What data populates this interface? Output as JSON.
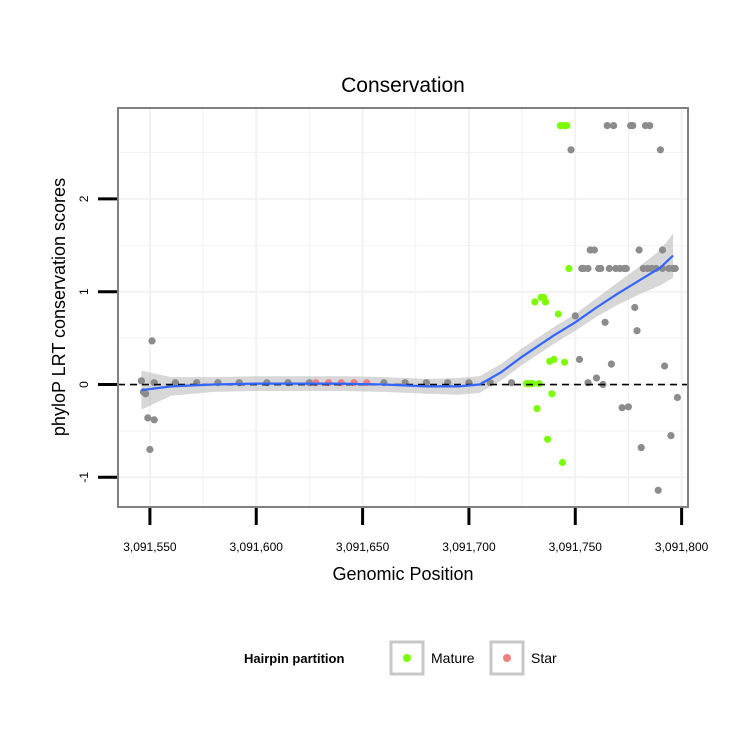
{
  "chart_data": {
    "type": "scatter",
    "title": "Conservation",
    "xlabel": "Genomic Position",
    "ylabel": "phyloP LRT conservation scores",
    "xlim": [
      3091535,
      3091803
    ],
    "ylim": [
      -1.32,
      2.98
    ],
    "x_ticks": [
      {
        "value": 3091550,
        "label": "3,091,550"
      },
      {
        "value": 3091600,
        "label": "3,091,600"
      },
      {
        "value": 3091650,
        "label": "3,091,650"
      },
      {
        "value": 3091700,
        "label": "3,091,700"
      },
      {
        "value": 3091750,
        "label": "3,091,750"
      },
      {
        "value": 3091800,
        "label": "3,091,800"
      }
    ],
    "y_ticks": [
      {
        "value": -1,
        "label": "-1"
      },
      {
        "value": 0,
        "label": "0"
      },
      {
        "value": 1,
        "label": "1"
      },
      {
        "value": 2,
        "label": "2"
      }
    ],
    "reference_line": {
      "y": 0,
      "style": "dashed"
    },
    "legend": {
      "title": "Hairpin partition",
      "position": "bottom",
      "entries": [
        {
          "label": "Mature",
          "color": "#7cfc00"
        },
        {
          "label": "Star",
          "color": "#f08080"
        }
      ]
    },
    "colors": {
      "Other": "#8c8c8c",
      "Mature": "#7cfc00",
      "Star": "#f08080",
      "smooth": "#3366ff",
      "band": "#bebebe",
      "panel_border": "#808080",
      "grid": "#f2f2f2"
    },
    "series": [
      {
        "name": "Other",
        "points": [
          [
            3091546,
            0.04
          ],
          [
            3091547,
            -0.08
          ],
          [
            3091548,
            -0.1
          ],
          [
            3091549,
            -0.36
          ],
          [
            3091550,
            -0.7
          ],
          [
            3091551,
            0.47
          ],
          [
            3091552,
            -0.38
          ],
          [
            3091552,
            0.02
          ],
          [
            3091562,
            0.02
          ],
          [
            3091572,
            0.02
          ],
          [
            3091582,
            0.02
          ],
          [
            3091592,
            0.02
          ],
          [
            3091605,
            0.02
          ],
          [
            3091615,
            0.02
          ],
          [
            3091625,
            0.02
          ],
          [
            3091660,
            0.02
          ],
          [
            3091670,
            0.02
          ],
          [
            3091680,
            0.02
          ],
          [
            3091690,
            0.02
          ],
          [
            3091700,
            0.02
          ],
          [
            3091710,
            0.02
          ],
          [
            3091720,
            0.02
          ],
          [
            3091748,
            2.53
          ],
          [
            3091750,
            0.74
          ],
          [
            3091752,
            0.27
          ],
          [
            3091753,
            1.25
          ],
          [
            3091754,
            1.25
          ],
          [
            3091756,
            1.25
          ],
          [
            3091756,
            0.02
          ],
          [
            3091757,
            1.45
          ],
          [
            3091759,
            1.45
          ],
          [
            3091760,
            0.07
          ],
          [
            3091761,
            1.25
          ],
          [
            3091762,
            1.25
          ],
          [
            3091763,
            0.0
          ],
          [
            3091764,
            0.67
          ],
          [
            3091765,
            2.79
          ],
          [
            3091766,
            1.25
          ],
          [
            3091767,
            0.22
          ],
          [
            3091768,
            2.79
          ],
          [
            3091769,
            1.25
          ],
          [
            3091771,
            1.25
          ],
          [
            3091772,
            -0.25
          ],
          [
            3091773,
            1.25
          ],
          [
            3091774,
            1.25
          ],
          [
            3091775,
            -0.24
          ],
          [
            3091776,
            2.79
          ],
          [
            3091777,
            2.79
          ],
          [
            3091778,
            0.83
          ],
          [
            3091779,
            0.58
          ],
          [
            3091780,
            1.45
          ],
          [
            3091781,
            -0.68
          ],
          [
            3091782,
            1.25
          ],
          [
            3091783,
            2.79
          ],
          [
            3091784,
            1.25
          ],
          [
            3091785,
            2.79
          ],
          [
            3091786,
            1.25
          ],
          [
            3091788,
            1.25
          ],
          [
            3091789,
            -1.14
          ],
          [
            3091790,
            2.53
          ],
          [
            3091791,
            1.45
          ],
          [
            3091791,
            1.25
          ],
          [
            3091792,
            0.2
          ],
          [
            3091794,
            1.25
          ],
          [
            3091795,
            -0.55
          ],
          [
            3091796,
            1.25
          ],
          [
            3091797,
            1.25
          ],
          [
            3091798,
            -0.14
          ]
        ]
      },
      {
        "name": "Mature",
        "points": [
          [
            3091727,
            0.01
          ],
          [
            3091728,
            0.01
          ],
          [
            3091729,
            0.01
          ],
          [
            3091730,
            0.01
          ],
          [
            3091731,
            0.89
          ],
          [
            3091732,
            -0.26
          ],
          [
            3091733,
            0.01
          ],
          [
            3091734,
            0.94
          ],
          [
            3091735,
            0.94
          ],
          [
            3091736,
            0.89
          ],
          [
            3091737,
            -0.59
          ],
          [
            3091738,
            0.25
          ],
          [
            3091739,
            -0.1
          ],
          [
            3091740,
            0.27
          ],
          [
            3091742,
            0.76
          ],
          [
            3091743,
            2.79
          ],
          [
            3091744,
            -0.84
          ],
          [
            3091745,
            2.79
          ],
          [
            3091745,
            0.24
          ],
          [
            3091746,
            2.79
          ],
          [
            3091747,
            1.25
          ]
        ]
      },
      {
        "name": "Star",
        "points": [
          [
            3091628,
            0.02
          ],
          [
            3091634,
            0.02
          ],
          [
            3091640,
            0.02
          ],
          [
            3091646,
            0.02
          ],
          [
            3091652,
            0.02
          ]
        ]
      }
    ],
    "smooth": {
      "method": "loess",
      "fit": [
        [
          3091546,
          -0.06
        ],
        [
          3091560,
          -0.02
        ],
        [
          3091580,
          0.0
        ],
        [
          3091600,
          0.01
        ],
        [
          3091620,
          0.01
        ],
        [
          3091640,
          0.01
        ],
        [
          3091660,
          0.0
        ],
        [
          3091680,
          -0.02
        ],
        [
          3091695,
          -0.02
        ],
        [
          3091705,
          0.0
        ],
        [
          3091715,
          0.13
        ],
        [
          3091725,
          0.3
        ],
        [
          3091740,
          0.53
        ],
        [
          3091750,
          0.67
        ],
        [
          3091760,
          0.83
        ],
        [
          3091770,
          0.98
        ],
        [
          3091780,
          1.12
        ],
        [
          3091790,
          1.26
        ],
        [
          3091796,
          1.39
        ]
      ],
      "band": [
        [
          3091546,
          -0.27,
          0.15
        ],
        [
          3091560,
          -0.12,
          0.08
        ],
        [
          3091580,
          -0.08,
          0.08
        ],
        [
          3091600,
          -0.07,
          0.09
        ],
        [
          3091620,
          -0.07,
          0.09
        ],
        [
          3091640,
          -0.07,
          0.09
        ],
        [
          3091660,
          -0.08,
          0.08
        ],
        [
          3091680,
          -0.1,
          0.06
        ],
        [
          3091695,
          -0.11,
          0.07
        ],
        [
          3091705,
          -0.09,
          0.09
        ],
        [
          3091715,
          0.04,
          0.22
        ],
        [
          3091725,
          0.21,
          0.39
        ],
        [
          3091740,
          0.44,
          0.62
        ],
        [
          3091750,
          0.58,
          0.76
        ],
        [
          3091760,
          0.73,
          0.93
        ],
        [
          3091770,
          0.86,
          1.1
        ],
        [
          3091780,
          0.97,
          1.27
        ],
        [
          3091790,
          1.07,
          1.45
        ],
        [
          3091796,
          1.15,
          1.63
        ]
      ]
    }
  }
}
